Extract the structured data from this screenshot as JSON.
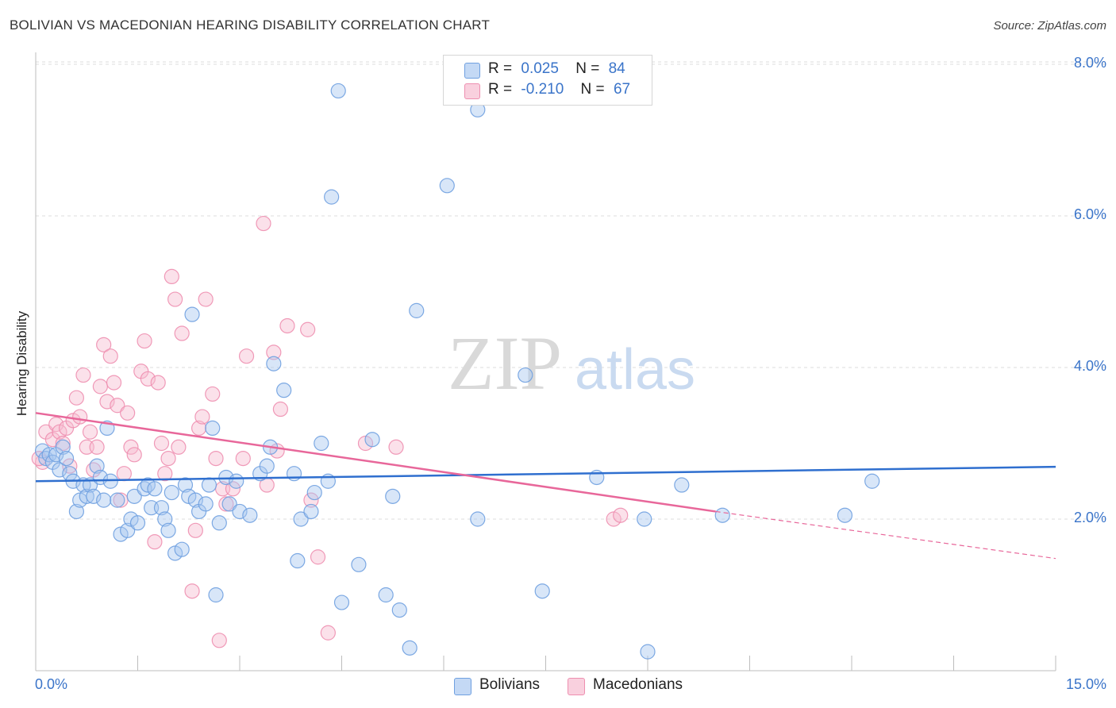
{
  "title": "BOLIVIAN VS MACEDONIAN HEARING DISABILITY CORRELATION CHART",
  "source": "Source: ZipAtlas.com",
  "watermark": {
    "zip": "ZIP",
    "atlas": "atlas"
  },
  "legend_top": {
    "rows": [
      {
        "r_label": "R =",
        "r_value": "0.025",
        "n_label": "N =",
        "n_value": "84",
        "color": "#a9c8f0"
      },
      {
        "r_label": "R =",
        "r_value": "-0.210",
        "n_label": "N =",
        "n_value": "67",
        "color": "#f6bcd0"
      }
    ]
  },
  "legend_bottom": [
    {
      "label": "Bolivians",
      "color": "#a9c8f0"
    },
    {
      "label": "Macedonians",
      "color": "#f6bcd0"
    }
  ],
  "axis": {
    "x_min_label": "0.0%",
    "x_max_label": "15.0%",
    "y_label": "Hearing Disability",
    "y_ticks": [
      {
        "value": 2.0,
        "label": "2.0%"
      },
      {
        "value": 4.0,
        "label": "4.0%"
      },
      {
        "value": 6.0,
        "label": "6.0%"
      },
      {
        "value": 8.0,
        "label": "8.0%"
      }
    ]
  },
  "chart_data": {
    "type": "scatter",
    "title": "BOLIVIAN VS MACEDONIAN HEARING DISABILITY CORRELATION CHART",
    "xlabel": "",
    "ylabel": "Hearing Disability",
    "xlim": [
      0,
      15
    ],
    "ylim": [
      0,
      8.3
    ],
    "grid": true,
    "colors": {
      "bolivians": "#6fa0e0",
      "macedonians": "#ee8fb0",
      "bolivians_line": "#2f6fcf",
      "macedonians_line": "#e8679a"
    },
    "series": [
      {
        "name": "Bolivians",
        "trend": {
          "x": [
            0,
            15
          ],
          "y": [
            2.5,
            2.69
          ]
        },
        "points": [
          [
            0.1,
            2.9
          ],
          [
            0.15,
            2.8
          ],
          [
            0.2,
            2.85
          ],
          [
            0.25,
            2.75
          ],
          [
            0.3,
            2.85
          ],
          [
            0.35,
            2.65
          ],
          [
            0.4,
            2.95
          ],
          [
            0.45,
            2.8
          ],
          [
            0.5,
            2.6
          ],
          [
            0.55,
            2.5
          ],
          [
            0.6,
            2.1
          ],
          [
            0.65,
            2.25
          ],
          [
            0.7,
            2.45
          ],
          [
            0.75,
            2.3
          ],
          [
            0.8,
            2.45
          ],
          [
            0.85,
            2.3
          ],
          [
            0.9,
            2.7
          ],
          [
            0.95,
            2.55
          ],
          [
            1.0,
            2.25
          ],
          [
            1.05,
            3.2
          ],
          [
            1.1,
            2.5
          ],
          [
            1.2,
            2.25
          ],
          [
            1.25,
            1.8
          ],
          [
            1.35,
            1.85
          ],
          [
            1.4,
            2.0
          ],
          [
            1.45,
            2.3
          ],
          [
            1.5,
            1.95
          ],
          [
            1.6,
            2.4
          ],
          [
            1.65,
            2.45
          ],
          [
            1.7,
            2.15
          ],
          [
            1.75,
            2.4
          ],
          [
            1.85,
            2.15
          ],
          [
            1.9,
            2.0
          ],
          [
            1.95,
            1.85
          ],
          [
            2.0,
            2.35
          ],
          [
            2.05,
            1.55
          ],
          [
            2.15,
            1.6
          ],
          [
            2.2,
            2.45
          ],
          [
            2.25,
            2.3
          ],
          [
            2.3,
            4.7
          ],
          [
            2.35,
            2.25
          ],
          [
            2.4,
            2.1
          ],
          [
            2.5,
            2.2
          ],
          [
            2.55,
            2.45
          ],
          [
            2.6,
            3.2
          ],
          [
            2.65,
            1.0
          ],
          [
            2.7,
            1.95
          ],
          [
            2.8,
            2.55
          ],
          [
            2.85,
            2.2
          ],
          [
            2.95,
            2.5
          ],
          [
            3.0,
            2.1
          ],
          [
            3.15,
            2.05
          ],
          [
            3.3,
            2.6
          ],
          [
            3.4,
            2.7
          ],
          [
            3.45,
            2.95
          ],
          [
            3.5,
            4.05
          ],
          [
            3.65,
            3.7
          ],
          [
            3.8,
            2.6
          ],
          [
            3.85,
            1.45
          ],
          [
            3.9,
            2.0
          ],
          [
            4.05,
            2.1
          ],
          [
            4.1,
            2.35
          ],
          [
            4.2,
            3.0
          ],
          [
            4.3,
            2.5
          ],
          [
            4.35,
            6.25
          ],
          [
            4.45,
            7.65
          ],
          [
            4.5,
            0.9
          ],
          [
            4.75,
            1.4
          ],
          [
            4.95,
            3.05
          ],
          [
            5.15,
            1.0
          ],
          [
            5.25,
            2.3
          ],
          [
            5.35,
            0.8
          ],
          [
            5.5,
            0.3
          ],
          [
            5.6,
            4.75
          ],
          [
            6.05,
            6.4
          ],
          [
            6.5,
            2.0
          ],
          [
            6.5,
            7.4
          ],
          [
            7.2,
            3.9
          ],
          [
            7.45,
            1.05
          ],
          [
            8.25,
            2.55
          ],
          [
            8.95,
            2.0
          ],
          [
            9.0,
            0.25
          ],
          [
            9.5,
            2.45
          ],
          [
            10.1,
            2.05
          ],
          [
            11.9,
            2.05
          ],
          [
            12.3,
            2.5
          ]
        ]
      },
      {
        "name": "Macedonians",
        "trend": {
          "x": [
            0,
            10.0
          ],
          "y": [
            3.4,
            2.1
          ]
        },
        "trend_dashed": {
          "x": [
            10.0,
            15
          ],
          "y": [
            2.1,
            1.48
          ]
        },
        "points": [
          [
            0.1,
            2.75
          ],
          [
            0.15,
            3.15
          ],
          [
            0.25,
            3.05
          ],
          [
            0.3,
            3.25
          ],
          [
            0.35,
            3.15
          ],
          [
            0.4,
            3.0
          ],
          [
            0.45,
            3.2
          ],
          [
            0.5,
            2.7
          ],
          [
            0.55,
            3.3
          ],
          [
            0.6,
            3.6
          ],
          [
            0.65,
            3.35
          ],
          [
            0.7,
            3.9
          ],
          [
            0.75,
            2.95
          ],
          [
            0.8,
            3.15
          ],
          [
            0.85,
            2.65
          ],
          [
            0.9,
            2.95
          ],
          [
            0.95,
            3.75
          ],
          [
            1.0,
            4.3
          ],
          [
            1.05,
            3.55
          ],
          [
            1.1,
            4.15
          ],
          [
            1.15,
            3.8
          ],
          [
            1.2,
            3.5
          ],
          [
            1.25,
            2.25
          ],
          [
            1.3,
            2.6
          ],
          [
            1.35,
            3.4
          ],
          [
            1.4,
            2.95
          ],
          [
            1.45,
            2.85
          ],
          [
            1.55,
            3.95
          ],
          [
            1.6,
            4.35
          ],
          [
            1.65,
            3.85
          ],
          [
            1.75,
            1.7
          ],
          [
            1.8,
            3.8
          ],
          [
            1.85,
            3.0
          ],
          [
            1.9,
            2.6
          ],
          [
            1.95,
            2.8
          ],
          [
            2.0,
            5.2
          ],
          [
            2.05,
            4.9
          ],
          [
            2.1,
            2.95
          ],
          [
            2.15,
            4.45
          ],
          [
            2.3,
            1.05
          ],
          [
            2.35,
            1.85
          ],
          [
            2.4,
            3.2
          ],
          [
            2.45,
            3.35
          ],
          [
            2.5,
            4.9
          ],
          [
            2.6,
            3.65
          ],
          [
            2.65,
            2.8
          ],
          [
            2.7,
            0.4
          ],
          [
            2.75,
            2.4
          ],
          [
            2.8,
            2.2
          ],
          [
            2.9,
            2.4
          ],
          [
            3.05,
            2.8
          ],
          [
            3.1,
            4.15
          ],
          [
            3.35,
            5.9
          ],
          [
            3.4,
            2.45
          ],
          [
            3.5,
            4.2
          ],
          [
            3.55,
            2.9
          ],
          [
            3.6,
            3.45
          ],
          [
            3.7,
            4.55
          ],
          [
            4.0,
            4.5
          ],
          [
            4.05,
            2.25
          ],
          [
            4.15,
            1.5
          ],
          [
            4.3,
            0.5
          ],
          [
            4.85,
            3.0
          ],
          [
            5.3,
            2.95
          ],
          [
            8.5,
            2.0
          ],
          [
            8.6,
            2.05
          ],
          [
            0.05,
            2.8
          ]
        ]
      }
    ]
  }
}
